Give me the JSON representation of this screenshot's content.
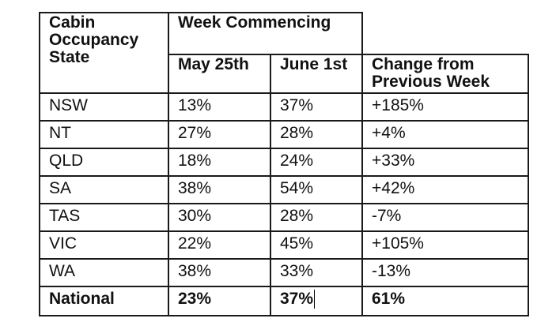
{
  "table": {
    "header": {
      "state_label": "Cabin Occupancy State",
      "week_commencing": "Week Commencing",
      "columns": [
        "May 25th",
        "June 1st",
        "Change from Previous Week"
      ]
    },
    "rows": [
      {
        "state": "NSW",
        "may25": "13%",
        "june1": "37%",
        "change": "+185%"
      },
      {
        "state": "NT",
        "may25": "27%",
        "june1": "28%",
        "change": "+4%"
      },
      {
        "state": "QLD",
        "may25": "18%",
        "june1": "24%",
        "change": "+33%"
      },
      {
        "state": "SA",
        "may25": "38%",
        "june1": "54%",
        "change": "+42%"
      },
      {
        "state": "TAS",
        "may25": "30%",
        "june1": "28%",
        "change": "-7%"
      },
      {
        "state": "VIC",
        "may25": "22%",
        "june1": "45%",
        "change": "+105%"
      },
      {
        "state": "WA",
        "may25": "38%",
        "june1": "33%",
        "change": "-13%"
      }
    ],
    "national": {
      "state": "National",
      "may25": "23%",
      "june1": "37%",
      "change": "61%"
    }
  }
}
